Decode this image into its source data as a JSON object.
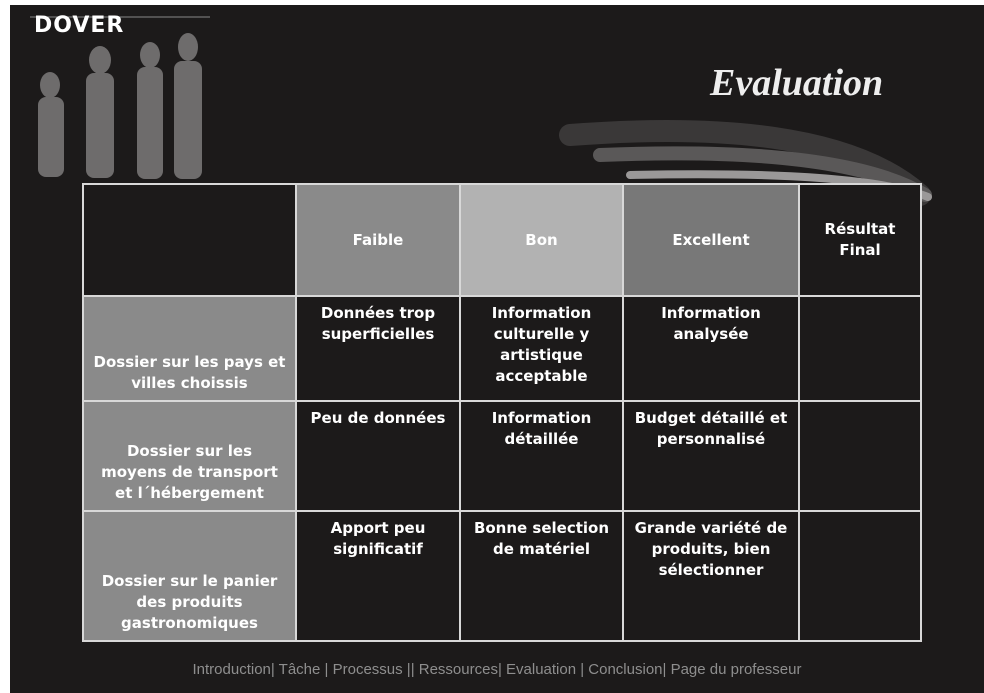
{
  "header": {
    "logo": "DOVER",
    "title": "Evaluation"
  },
  "table": {
    "columns": [
      "",
      "Faible",
      "Bon",
      "Excellent",
      "Résultat Final"
    ],
    "rows": [
      [
        "Dossier sur les pays et villes choissis",
        "Données trop superficielles",
        "Information culturelle y artistique acceptable",
        "Information analysée",
        ""
      ],
      [
        "Dossier sur les moyens de transport et l´hébergement",
        "Peu de données",
        "Information détaillée",
        "Budget détaillé et personnalisé",
        ""
      ],
      [
        "Dossier sur le panier des produits gastronomiques",
        "Apport peu significatif",
        "Bonne selection de matériel",
        "Grande variété de produits, bien sélectionner",
        ""
      ]
    ]
  },
  "footer": {
    "nav": "Introduction| Tâche | Processus || Ressources| Evaluation | Conclusion| Page du professeur"
  }
}
